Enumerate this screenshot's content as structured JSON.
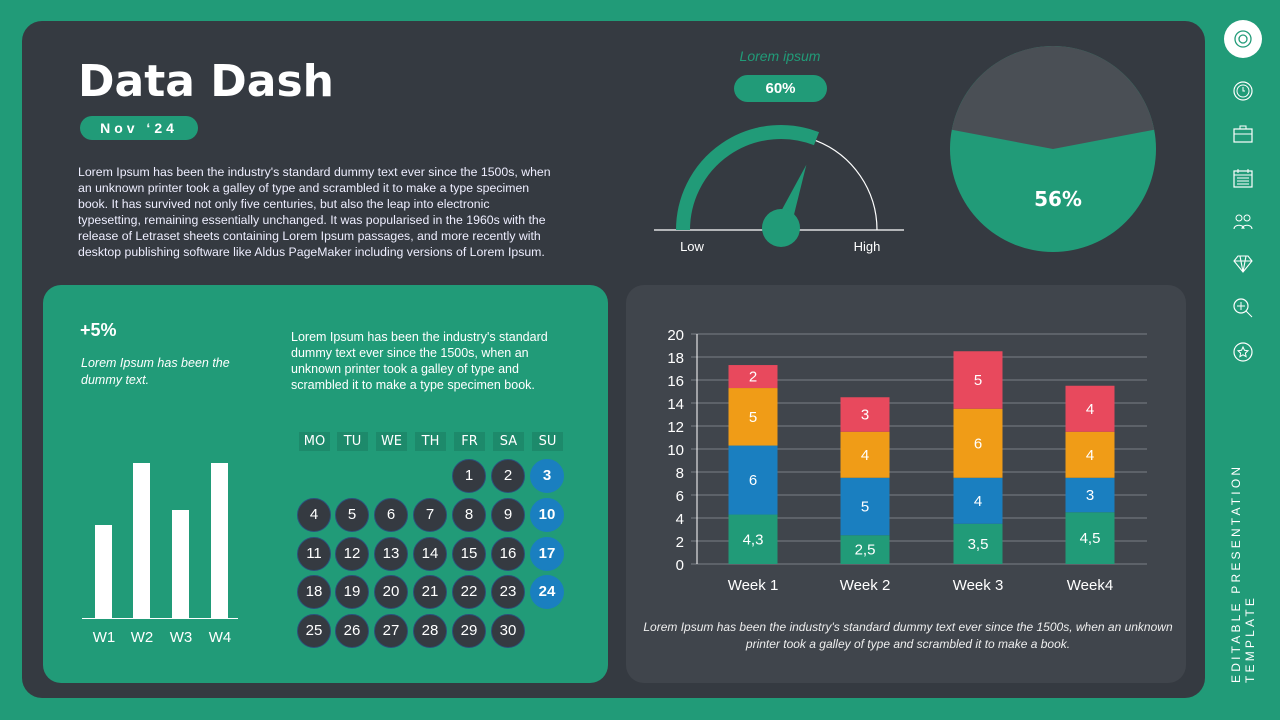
{
  "header": {
    "title": "Data Dash",
    "date": "Nov ‘24",
    "intro_lines": [
      "Lorem Ipsum has been the industry's standard  dummy text ever since the 1500s, when",
      "an unknown  printer took a galley of type and scrambled it to make a type specimen",
      "book.  It has survived not only five centuries,  but also the leap into electronic",
      "typesetting, remaining essentially unchanged.  It was popularised  in the 1960s with the",
      "release of Letraset sheets containing  Lorem Ipsum passages, and more recently with",
      "desktop publishing  software like Aldus PageMaker including  versions of Lorem Ipsum."
    ]
  },
  "gauge": {
    "label": "Lorem ipsum",
    "value_text": "60%",
    "value": 60,
    "low_label": "Low",
    "high_label": "High"
  },
  "pie": {
    "value": 56,
    "label": "56%",
    "colors": {
      "filled": "#219b78",
      "rest": "#4a4f55"
    }
  },
  "growth": {
    "value": "+5%",
    "description": "Lorem Ipsum has been the dummy text.",
    "chart": {
      "type": "bar",
      "categories": [
        "W1",
        "W2",
        "W3",
        "W4"
      ],
      "values": [
        3,
        5,
        3.5,
        5
      ]
    }
  },
  "calendar": {
    "text_lines": [
      "Lorem Ipsum has been the industry's standard",
      "dummy text ever since the 1500s, when an",
      "unknown  printer took a galley of type and",
      "scrambled it to make a type specimen book."
    ],
    "days": [
      "MO",
      "TU",
      "WE",
      "TH",
      "FR",
      "SA",
      "SU"
    ],
    "first_weekday": 4,
    "num_days": 30
  },
  "chart_data": {
    "type": "bar",
    "stacked": true,
    "categories": [
      "Week 1",
      "Week 2",
      "Week 3",
      "Week4"
    ],
    "series": [
      {
        "values": [
          4.3,
          2.5,
          3.5,
          4.5
        ],
        "labels": [
          "4,3",
          "2,5",
          "3,5",
          "4,5"
        ],
        "color": "#219b78"
      },
      {
        "values": [
          6,
          5,
          4,
          3
        ],
        "labels": [
          "6",
          "5",
          "4",
          "3"
        ],
        "color": "#1a7fc0"
      },
      {
        "values": [
          5,
          4,
          6,
          4
        ],
        "labels": [
          "5",
          "4",
          "6",
          "4"
        ],
        "color": "#f09c17"
      },
      {
        "values": [
          2,
          3,
          5,
          4
        ],
        "labels": [
          "2",
          "3",
          "5",
          "4"
        ],
        "color": "#e8495d"
      }
    ],
    "ylim": [
      0,
      20
    ],
    "yticks": [
      0,
      2,
      4,
      6,
      8,
      10,
      12,
      14,
      16,
      18,
      20
    ],
    "grid": true
  },
  "chart_caption": "Lorem Ipsum has been the industry's standard dummy text ever since the 1500s, when an unknown printer took a galley of type and scrambled it to make a book.",
  "sidebar": {
    "icons": [
      "settings-icon",
      "clock-icon",
      "briefcase-icon",
      "calendar-icon",
      "users-icon",
      "diamond-icon",
      "zoom-in-icon",
      "star-icon"
    ],
    "vertical_text_lines": [
      "EDITABLE PRESENTATION",
      "TEMPLATE"
    ]
  }
}
